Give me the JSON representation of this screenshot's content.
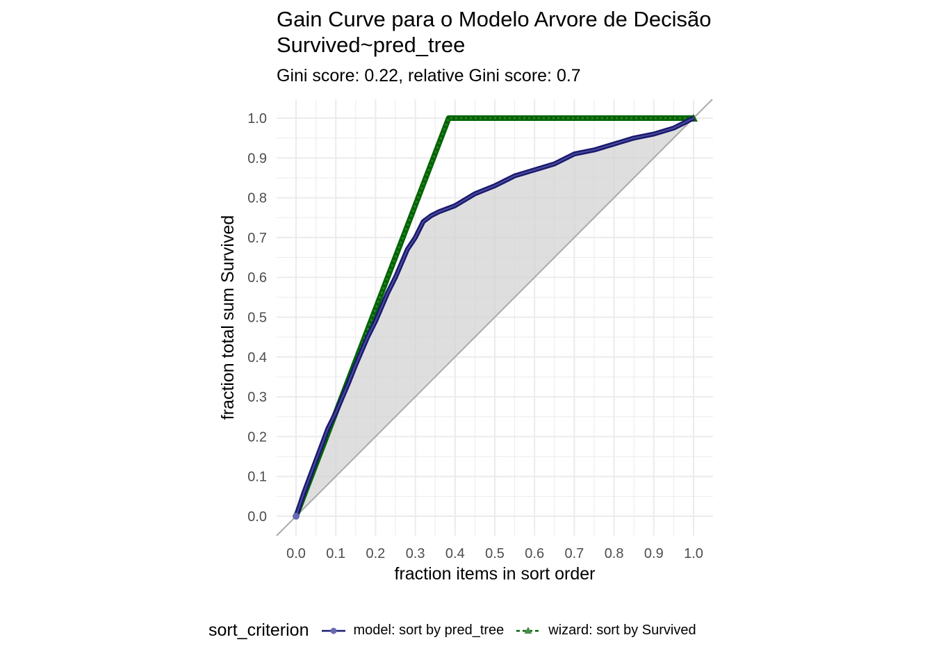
{
  "chart_data": {
    "type": "line",
    "title": "Gain Curve para o Modelo Arvore de Decisão",
    "title_line2": "Survived~pred_tree",
    "subtitle": "Gini score: 0.22, relative Gini score: 0.7",
    "xlabel": "fraction items in sort order",
    "ylabel": "fraction total sum Survived",
    "xlim": [
      0,
      1
    ],
    "ylim": [
      0,
      1
    ],
    "x_ticks": [
      "0.0",
      "0.1",
      "0.2",
      "0.3",
      "0.4",
      "0.5",
      "0.6",
      "0.7",
      "0.8",
      "0.9",
      "1.0"
    ],
    "y_ticks": [
      "0.0",
      "0.1",
      "0.2",
      "0.3",
      "0.4",
      "0.5",
      "0.6",
      "0.7",
      "0.8",
      "0.9",
      "1.0"
    ],
    "grid": true,
    "diagonal_reference": true,
    "shaded_area_between_model_and_diagonal": true,
    "legend": {
      "title": "sort_criterion",
      "placement": "bottom"
    },
    "series": [
      {
        "name": "model: sort by pred_tree",
        "color": "#191970",
        "marker": "circle",
        "x": [
          0,
          0.02,
          0.05,
          0.08,
          0.1,
          0.13,
          0.15,
          0.18,
          0.2,
          0.23,
          0.25,
          0.28,
          0.3,
          0.32,
          0.34,
          0.36,
          0.4,
          0.45,
          0.5,
          0.55,
          0.6,
          0.65,
          0.7,
          0.75,
          0.8,
          0.85,
          0.9,
          0.95,
          1.0
        ],
        "y": [
          0,
          0.06,
          0.14,
          0.22,
          0.26,
          0.33,
          0.38,
          0.45,
          0.49,
          0.56,
          0.6,
          0.67,
          0.7,
          0.74,
          0.755,
          0.765,
          0.78,
          0.81,
          0.83,
          0.855,
          0.87,
          0.885,
          0.91,
          0.92,
          0.935,
          0.95,
          0.96,
          0.975,
          1.0
        ]
      },
      {
        "name": "wizard: sort by Survived",
        "color": "#006400",
        "marker": "triangle",
        "x": [
          0,
          0.384,
          1.0
        ],
        "y": [
          0,
          1.0,
          1.0
        ]
      }
    ]
  }
}
